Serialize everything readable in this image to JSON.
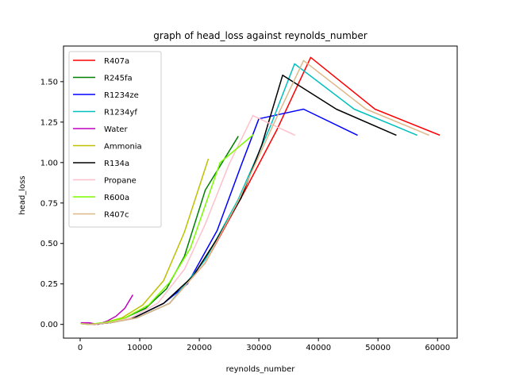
{
  "chart_data": {
    "type": "line",
    "title": "graph of head_loss against reynolds_number",
    "xlabel": "reynolds_number",
    "ylabel": "head_loss",
    "xlim": [
      -2800,
      63300
    ],
    "ylim": [
      -0.085,
      1.72
    ],
    "xticks": [
      0,
      10000,
      20000,
      30000,
      40000,
      50000,
      60000
    ],
    "xtick_labels": [
      "0",
      "10000",
      "20000",
      "30000",
      "40000",
      "50000",
      "60000"
    ],
    "yticks": [
      0.0,
      0.25,
      0.5,
      0.75,
      1.0,
      1.25,
      1.5
    ],
    "ytick_labels": [
      "0.00",
      "0.25",
      "0.50",
      "0.75",
      "1.00",
      "1.25",
      "1.50"
    ],
    "grid": false,
    "legend_position": "top-left",
    "series": [
      {
        "name": "R407a",
        "color": "#ff0000",
        "x": [
          300,
          2000,
          5000,
          9500,
          15000,
          21000,
          27000,
          33000,
          38700,
          49500,
          60300
        ],
        "y": [
          0.005,
          0.0,
          0.01,
          0.04,
          0.13,
          0.38,
          0.78,
          1.2,
          1.65,
          1.33,
          1.17
        ]
      },
      {
        "name": "R245fa",
        "color": "#008000",
        "x": [
          200,
          1500,
          4000,
          7500,
          11000,
          14500,
          17500,
          21000,
          26500
        ],
        "y": [
          0.005,
          0.0,
          0.01,
          0.04,
          0.1,
          0.22,
          0.42,
          0.83,
          1.16
        ]
      },
      {
        "name": "R1234ze",
        "color": "#0000ff",
        "x": [
          200,
          2000,
          5000,
          9000,
          14000,
          18000,
          23000,
          27000,
          30000,
          37500,
          46500
        ],
        "y": [
          0.005,
          0.0,
          0.01,
          0.04,
          0.13,
          0.25,
          0.58,
          0.98,
          1.27,
          1.33,
          1.17
        ]
      },
      {
        "name": "R1234yf",
        "color": "#00bfbf",
        "x": [
          300,
          2000,
          5000,
          9500,
          15000,
          21000,
          26500,
          32000,
          36000,
          46000,
          56500
        ],
        "y": [
          0.005,
          0.0,
          0.01,
          0.04,
          0.13,
          0.4,
          0.77,
          1.23,
          1.61,
          1.33,
          1.17
        ]
      },
      {
        "name": "Water",
        "color": "#bf00bf",
        "x": [
          200,
          1500,
          3000,
          4500,
          6000,
          7500,
          8800
        ],
        "y": [
          0.01,
          0.01,
          0.0,
          0.02,
          0.05,
          0.1,
          0.18
        ]
      },
      {
        "name": "Ammonia",
        "color": "#bfbf00",
        "x": [
          200,
          1500,
          4000,
          7000,
          10500,
          14000,
          17500,
          21500
        ],
        "y": [
          0.005,
          0.0,
          0.01,
          0.04,
          0.12,
          0.27,
          0.57,
          1.02
        ]
      },
      {
        "name": "R134a",
        "color": "#000000",
        "x": [
          300,
          2000,
          5000,
          9000,
          14000,
          19000,
          23000,
          27000,
          30500,
          34000,
          43000,
          53000
        ],
        "y": [
          0.005,
          0.0,
          0.01,
          0.04,
          0.13,
          0.3,
          0.53,
          0.78,
          1.11,
          1.54,
          1.33,
          1.17
        ]
      },
      {
        "name": "Propane",
        "color": "#ffc0cb",
        "x": [
          200,
          1800,
          4500,
          8500,
          13000,
          17500,
          21000,
          25000,
          29000,
          36000
        ],
        "y": [
          0.005,
          0.0,
          0.01,
          0.04,
          0.13,
          0.34,
          0.62,
          0.99,
          1.29,
          1.17
        ]
      },
      {
        "name": "R600a",
        "color": "#7cfc00",
        "x": [
          200,
          1500,
          4000,
          7500,
          11500,
          15000,
          18500,
          23500,
          29000
        ],
        "y": [
          0.005,
          0.0,
          0.01,
          0.04,
          0.12,
          0.26,
          0.47,
          1.0,
          1.17
        ]
      },
      {
        "name": "R407c",
        "color": "#deb887",
        "x": [
          300,
          2000,
          5000,
          9500,
          15000,
          21000,
          26500,
          32500,
          37500,
          48000,
          58500
        ],
        "y": [
          0.005,
          0.0,
          0.01,
          0.04,
          0.13,
          0.38,
          0.76,
          1.24,
          1.63,
          1.33,
          1.17
        ]
      }
    ]
  }
}
